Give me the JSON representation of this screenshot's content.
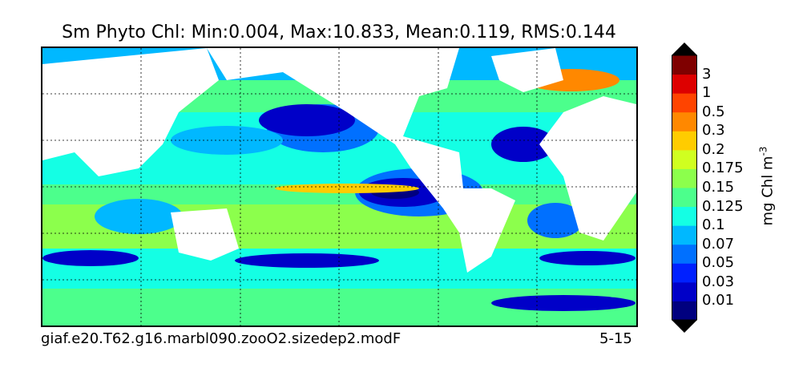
{
  "title": "Sm Phyto Chl: Min:0.004, Max:10.833, Mean:0.119, RMS:0.144",
  "footer": {
    "case_name": "giaf.e20.T62.g16.marbl090.zooO2.sizedep2.modF",
    "date_range": "5-15"
  },
  "colorbar": {
    "unit_base": "mg Chl m",
    "unit_exp": "-3",
    "ticks": [
      "3",
      "1",
      "0.5",
      "0.3",
      "0.2",
      "0.175",
      "0.15",
      "0.125",
      "0.1",
      "0.07",
      "0.05",
      "0.03",
      "0.01"
    ],
    "colors": [
      "#00007f",
      "#0000c8",
      "#0020ff",
      "#0070ff",
      "#00b8ff",
      "#14ffe4",
      "#4cff8c",
      "#8cff4c",
      "#d0ff20",
      "#ffcc00",
      "#ff8800",
      "#ff4400",
      "#dd0000",
      "#7f0000"
    ],
    "under_color": "#000000",
    "over_color": "#000000"
  },
  "map": {
    "ocean_colors": {
      "deep_blue": "#0000c8",
      "blue": "#0070ff",
      "cyan": "#14ffe4",
      "green": "#4cff8c",
      "yellow_green": "#8cff4c",
      "yellow": "#ffcc00",
      "orange": "#ff8800"
    },
    "land_color": "#ffffff",
    "gridlines": "dashed"
  }
}
